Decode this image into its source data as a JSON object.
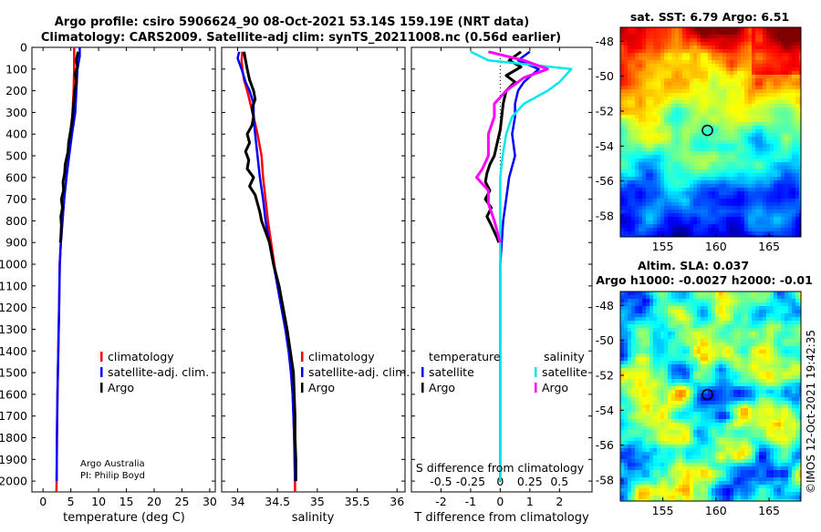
{
  "header": {
    "line1": "Argo profile: csiro 5906624_90 08-Oct-2021 53.14S 159.19E (NRT data)",
    "line2": "Climatology: CARS2009. Satellite-adj clim: synTS_20211008.nc (0.56d earlier)"
  },
  "colors": {
    "climatology": "#ff0000",
    "satellite": "#0000ff",
    "argo": "#000000",
    "sat_salinity": "#00e8e8",
    "argo_salinity": "#ff00ff"
  },
  "chart_data": [
    {
      "id": "temperature",
      "type": "line",
      "xlabel": "temperature (deg C)",
      "ylabel": "",
      "xlim": [
        -2,
        31
      ],
      "ylim": [
        2050,
        0
      ],
      "xticks": [
        0,
        5,
        10,
        15,
        20,
        25,
        30
      ],
      "yticks": [
        0,
        100,
        200,
        300,
        400,
        500,
        600,
        700,
        800,
        900,
        1000,
        1100,
        1200,
        1300,
        1400,
        1500,
        1600,
        1700,
        1800,
        1900,
        2000
      ],
      "legend": [
        "climatology",
        "satellite-adj. clim.",
        "Argo"
      ],
      "credit": [
        "Argo Australia",
        "PI: Philip Boyd"
      ],
      "series": [
        {
          "name": "climatology",
          "color": "#ff0000",
          "points": [
            [
              5.6,
              0
            ],
            [
              5.6,
              100
            ],
            [
              5.5,
              200
            ],
            [
              5.3,
              300
            ],
            [
              5.0,
              400
            ],
            [
              4.6,
              500
            ],
            [
              4.2,
              600
            ],
            [
              3.8,
              700
            ],
            [
              3.5,
              800
            ],
            [
              3.2,
              900
            ],
            [
              3.0,
              1000
            ],
            [
              2.9,
              1200
            ],
            [
              2.75,
              1400
            ],
            [
              2.6,
              1600
            ],
            [
              2.5,
              1800
            ],
            [
              2.45,
              2000
            ],
            [
              2.4,
              2050
            ]
          ]
        },
        {
          "name": "satellite-adj. clim.",
          "color": "#0000ff",
          "points": [
            [
              6.6,
              0
            ],
            [
              6.6,
              40
            ],
            [
              6.2,
              100
            ],
            [
              6.0,
              200
            ],
            [
              5.8,
              300
            ],
            [
              5.2,
              400
            ],
            [
              4.7,
              500
            ],
            [
              4.2,
              600
            ],
            [
              3.8,
              700
            ],
            [
              3.5,
              800
            ],
            [
              3.2,
              900
            ],
            [
              3.0,
              1000
            ],
            [
              2.9,
              1200
            ],
            [
              2.75,
              1400
            ],
            [
              2.6,
              1600
            ],
            [
              2.5,
              1800
            ],
            [
              2.45,
              2000
            ]
          ]
        },
        {
          "name": "Argo",
          "color": "#000000",
          "points": [
            [
              6.3,
              20
            ],
            [
              6.0,
              60
            ],
            [
              6.2,
              90
            ],
            [
              5.8,
              120
            ],
            [
              6.0,
              160
            ],
            [
              5.7,
              200
            ],
            [
              5.5,
              260
            ],
            [
              5.3,
              320
            ],
            [
              5.0,
              380
            ],
            [
              4.6,
              440
            ],
            [
              4.5,
              480
            ],
            [
              4.0,
              540
            ],
            [
              3.9,
              580
            ],
            [
              3.6,
              620
            ],
            [
              3.7,
              660
            ],
            [
              3.3,
              700
            ],
            [
              3.5,
              740
            ],
            [
              3.2,
              780
            ],
            [
              3.3,
              820
            ],
            [
              3.2,
              880
            ],
            [
              3.1,
              900
            ]
          ]
        }
      ]
    },
    {
      "id": "salinity",
      "type": "line",
      "xlabel": "salinity",
      "ylabel": "",
      "xlim": [
        33.8,
        36.1
      ],
      "ylim": [
        2050,
        0
      ],
      "xticks": [
        34,
        34.5,
        35,
        35.5,
        36
      ],
      "xticklabels": [
        "34",
        "34.5",
        "35",
        "35.5",
        "36"
      ],
      "legend": [
        "climatology",
        "satellite-adj. clim.",
        "Argo"
      ],
      "series": [
        {
          "name": "climatology",
          "color": "#ff0000",
          "points": [
            [
              34.06,
              20
            ],
            [
              34.05,
              60
            ],
            [
              34.06,
              100
            ],
            [
              34.08,
              150
            ],
            [
              34.12,
              200
            ],
            [
              34.16,
              260
            ],
            [
              34.2,
              320
            ],
            [
              34.25,
              400
            ],
            [
              34.3,
              500
            ],
            [
              34.32,
              600
            ],
            [
              34.35,
              700
            ],
            [
              34.38,
              800
            ],
            [
              34.42,
              900
            ],
            [
              34.46,
              1000
            ],
            [
              34.5,
              1100
            ],
            [
              34.55,
              1200
            ],
            [
              34.6,
              1300
            ],
            [
              34.64,
              1400
            ],
            [
              34.67,
              1500
            ],
            [
              34.69,
              1600
            ],
            [
              34.7,
              1700
            ],
            [
              34.71,
              1800
            ],
            [
              34.72,
              2000
            ],
            [
              34.72,
              2050
            ]
          ]
        },
        {
          "name": "satellite-adj. clim.",
          "color": "#0000ff",
          "points": [
            [
              34.02,
              20
            ],
            [
              34.0,
              50
            ],
            [
              34.05,
              100
            ],
            [
              34.1,
              160
            ],
            [
              34.15,
              200
            ],
            [
              34.2,
              260
            ],
            [
              34.2,
              320
            ],
            [
              34.22,
              400
            ],
            [
              34.25,
              500
            ],
            [
              34.28,
              600
            ],
            [
              34.32,
              700
            ],
            [
              34.35,
              800
            ],
            [
              34.4,
              900
            ],
            [
              34.45,
              1000
            ],
            [
              34.5,
              1100
            ],
            [
              34.55,
              1200
            ],
            [
              34.6,
              1300
            ],
            [
              34.64,
              1400
            ],
            [
              34.67,
              1500
            ],
            [
              34.69,
              1600
            ],
            [
              34.7,
              1700
            ],
            [
              34.71,
              1800
            ],
            [
              34.72,
              2000
            ]
          ]
        },
        {
          "name": "Argo",
          "color": "#000000",
          "points": [
            [
              34.08,
              20
            ],
            [
              34.1,
              60
            ],
            [
              34.12,
              100
            ],
            [
              34.15,
              150
            ],
            [
              34.2,
              200
            ],
            [
              34.22,
              240
            ],
            [
              34.18,
              280
            ],
            [
              34.2,
              320
            ],
            [
              34.18,
              360
            ],
            [
              34.12,
              400
            ],
            [
              34.15,
              440
            ],
            [
              34.1,
              480
            ],
            [
              34.14,
              520
            ],
            [
              34.12,
              560
            ],
            [
              34.2,
              600
            ],
            [
              34.15,
              640
            ],
            [
              34.22,
              680
            ],
            [
              34.25,
              720
            ],
            [
              34.28,
              760
            ],
            [
              34.3,
              800
            ],
            [
              34.35,
              850
            ],
            [
              34.4,
              900
            ],
            [
              34.45,
              1000
            ],
            [
              34.52,
              1100
            ],
            [
              34.57,
              1200
            ],
            [
              34.62,
              1300
            ],
            [
              34.66,
              1400
            ],
            [
              34.7,
              1500
            ],
            [
              34.71,
              1600
            ],
            [
              34.72,
              1700
            ],
            [
              34.72,
              1800
            ],
            [
              34.73,
              1900
            ],
            [
              34.73,
              2000
            ]
          ]
        }
      ]
    },
    {
      "id": "difference",
      "type": "line",
      "xlabel": "T difference from climatology",
      "toplabel": "S difference from climatology",
      "xlim": [
        -3,
        3.1
      ],
      "ylim": [
        2050,
        0
      ],
      "xticks": [
        -2,
        -1,
        0,
        1,
        2
      ],
      "sticks": [
        -0.5,
        -0.25,
        0,
        0.25,
        0.5
      ],
      "stickslabels": [
        "-0.5",
        "-0.25",
        "0",
        "0.25",
        "0.5"
      ],
      "legend_headers": [
        "temperature",
        "salinity"
      ],
      "legend": [
        "satellite",
        "Argo",
        "satellite",
        "Argo"
      ],
      "series": [
        {
          "name": "T satellite",
          "color": "#0000ff",
          "points": [
            [
              1.0,
              20
            ],
            [
              0.6,
              60
            ],
            [
              1.3,
              100
            ],
            [
              0.8,
              160
            ],
            [
              0.6,
              200
            ],
            [
              0.5,
              260
            ],
            [
              0.5,
              320
            ],
            [
              0.4,
              400
            ],
            [
              0.5,
              500
            ],
            [
              0.3,
              600
            ],
            [
              0.2,
              700
            ],
            [
              0.1,
              800
            ],
            [
              0.05,
              900
            ],
            [
              0,
              1000
            ],
            [
              0,
              2000
            ]
          ]
        },
        {
          "name": "T Argo",
          "color": "#000000",
          "points": [
            [
              0.7,
              20
            ],
            [
              0.3,
              60
            ],
            [
              0.7,
              90
            ],
            [
              0.2,
              130
            ],
            [
              0.5,
              160
            ],
            [
              0.2,
              200
            ],
            [
              0.1,
              260
            ],
            [
              0.05,
              320
            ],
            [
              0,
              380
            ],
            [
              -0.1,
              440
            ],
            [
              -0.2,
              500
            ],
            [
              -0.35,
              540
            ],
            [
              -0.45,
              580
            ],
            [
              -0.5,
              620
            ],
            [
              -0.35,
              660
            ],
            [
              -0.5,
              700
            ],
            [
              -0.3,
              740
            ],
            [
              -0.45,
              780
            ],
            [
              -0.3,
              820
            ],
            [
              -0.1,
              880
            ],
            [
              -0.05,
              900
            ]
          ]
        },
        {
          "name": "S satellite",
          "color": "#00e8e8",
          "points": [
            [
              -0.25,
              20
            ],
            [
              -0.1,
              60
            ],
            [
              0.6,
              100
            ],
            [
              0.5,
              160
            ],
            [
              0.4,
              200
            ],
            [
              0.2,
              260
            ],
            [
              0.1,
              320
            ],
            [
              0.05,
              400
            ],
            [
              0.02,
              500
            ],
            [
              0,
              600
            ],
            [
              0,
              2000
            ]
          ]
        },
        {
          "name": "S Argo",
          "color": "#ff00ff",
          "points": [
            [
              -0.1,
              20
            ],
            [
              0.2,
              60
            ],
            [
              0.4,
              100
            ],
            [
              0.2,
              140
            ],
            [
              0.05,
              200
            ],
            [
              -0.05,
              260
            ],
            [
              -0.05,
              320
            ],
            [
              -0.1,
              400
            ],
            [
              -0.1,
              500
            ],
            [
              -0.15,
              560
            ],
            [
              -0.2,
              600
            ],
            [
              -0.1,
              660
            ],
            [
              -0.1,
              720
            ],
            [
              -0.05,
              800
            ],
            [
              0,
              900
            ]
          ]
        }
      ]
    },
    {
      "id": "sst_map",
      "type": "heatmap",
      "title": "sat. SST: 6.79 Argo: 6.51",
      "xticks": [
        155,
        160,
        165
      ],
      "yticks": [
        -48,
        -50,
        -52,
        -54,
        -56,
        -58
      ],
      "xlim": [
        151,
        168
      ],
      "ylim": [
        -59.2,
        -47.2
      ],
      "marker": [
        159.2,
        -53.1
      ]
    },
    {
      "id": "sla_map",
      "type": "heatmap",
      "title": "Altim. SLA: 0.037",
      "subtitle": "Argo h1000: -0.0027 h2000: -0.01",
      "xticks": [
        155,
        160,
        165
      ],
      "yticks": [
        -48,
        -50,
        -52,
        -54,
        -56,
        -58
      ],
      "xlim": [
        151,
        168
      ],
      "ylim": [
        -59.2,
        -47.2
      ],
      "marker": [
        159.2,
        -53.1
      ]
    }
  ],
  "watermark": "©IMOS 12-Oct-2021 19:42:35"
}
